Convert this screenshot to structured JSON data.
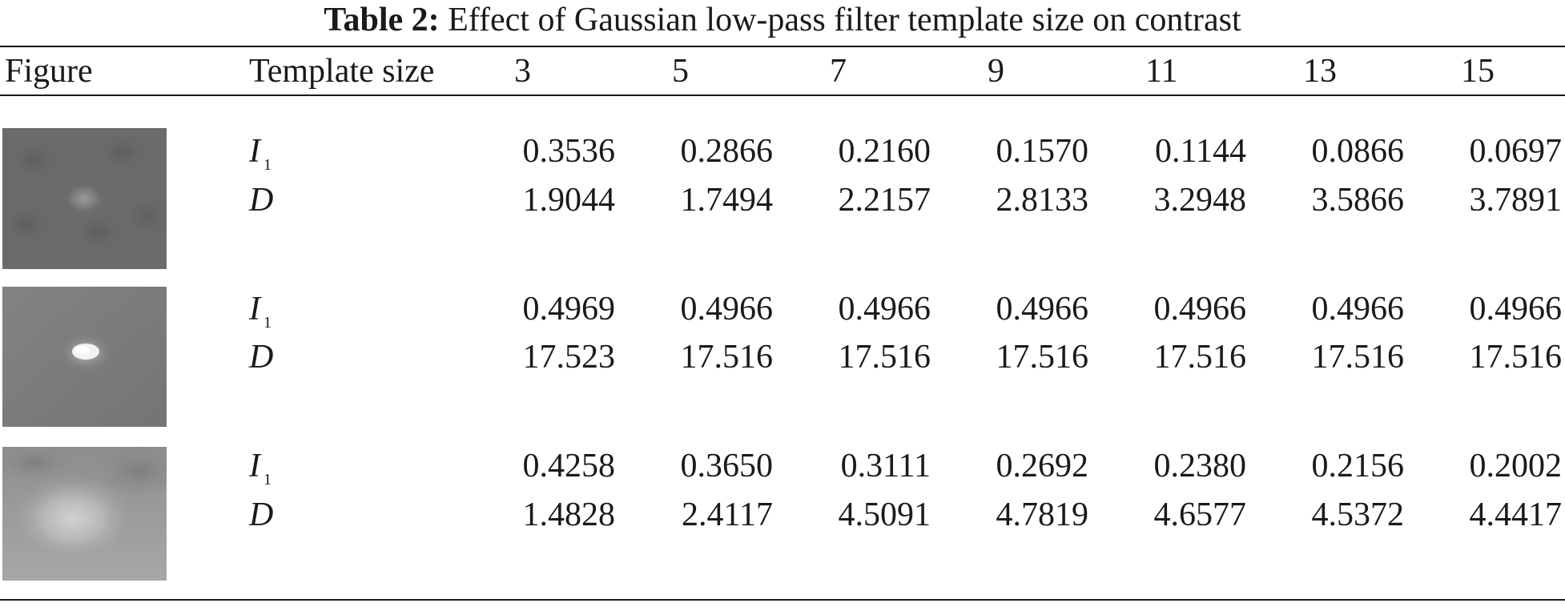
{
  "caption": {
    "label": "Table 2:",
    "text": "Effect of Gaussian low-pass filter template size on contrast"
  },
  "header": {
    "figure": "Figure",
    "template_size": "Template size",
    "sizes": [
      "3",
      "5",
      "7",
      "9",
      "11",
      "13",
      "15"
    ]
  },
  "rows": [
    {
      "thumbnail": "dark-noisy-target-image",
      "i1_label": "I",
      "i1_sub": "1",
      "d_label": "D",
      "i1": [
        "0.3536",
        "0.2866",
        "0.2160",
        "0.1570",
        "0.1144",
        "0.0866",
        "0.0697"
      ],
      "d": [
        "1.9044",
        "1.7494",
        "2.2157",
        "2.8133",
        "3.2948",
        "3.5866",
        "3.7891"
      ]
    },
    {
      "thumbnail": "bright-point-target-image",
      "i1_label": "I",
      "i1_sub": "1",
      "d_label": "D",
      "i1": [
        "0.4969",
        "0.4966",
        "0.4966",
        "0.4966",
        "0.4966",
        "0.4966",
        "0.4966"
      ],
      "d": [
        "17.523",
        "17.516",
        "17.516",
        "17.516",
        "17.516",
        "17.516",
        "17.516"
      ]
    },
    {
      "thumbnail": "diffuse-target-image",
      "i1_label": "I",
      "i1_sub": "1",
      "d_label": "D",
      "i1": [
        "0.4258",
        "0.3650",
        "0.3111",
        "0.2692",
        "0.2380",
        "0.2156",
        "0.2002"
      ],
      "d": [
        "1.4828",
        "2.4117",
        "4.5091",
        "4.7819",
        "4.6577",
        "4.5372",
        "4.4417"
      ]
    }
  ]
}
